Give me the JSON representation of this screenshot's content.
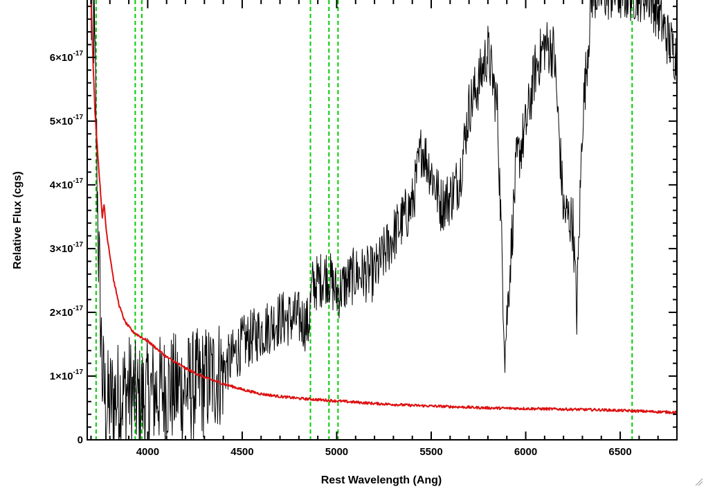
{
  "chart_data": {
    "type": "line",
    "xlabel": "Rest Wavelength (Ang)",
    "ylabel": "Relative Flux (cgs)",
    "xlim": [
      3680,
      6800
    ],
    "ylim": [
      0,
      6.9e-17
    ],
    "x_ticks": [
      4000,
      4500,
      5000,
      5500,
      6000,
      6500
    ],
    "x_tick_labels": [
      "4000",
      "4500",
      "5000",
      "5500",
      "6000",
      "6500"
    ],
    "y_ticks": [
      0,
      1e-17,
      2e-17,
      3e-17,
      4e-17,
      5e-17,
      6e-17
    ],
    "y_tick_labels": [
      {
        "mantissa": "0",
        "exponent": ""
      },
      {
        "mantissa": "1×10",
        "exponent": "-17"
      },
      {
        "mantissa": "2×10",
        "exponent": "-17"
      },
      {
        "mantissa": "3×10",
        "exponent": "-17"
      },
      {
        "mantissa": "4×10",
        "exponent": "-17"
      },
      {
        "mantissa": "5×10",
        "exponent": "-17"
      },
      {
        "mantissa": "6×10",
        "exponent": "-17"
      }
    ],
    "grid": false,
    "reference_lines": [
      3727,
      3934,
      3969,
      4861,
      4959,
      5007,
      6563
    ],
    "series": [
      {
        "role": "spectrum",
        "color": "#000000",
        "x": [
          3700,
          3710,
          3720,
          3740,
          3760,
          3780,
          3800,
          3850,
          3900,
          3950,
          4000,
          4100,
          4200,
          4300,
          4400,
          4500,
          4600,
          4700,
          4800,
          4850,
          4870,
          4950,
          5000,
          5100,
          5200,
          5300,
          5400,
          5450,
          5500,
          5550,
          5600,
          5650,
          5700,
          5750,
          5800,
          5850,
          5890,
          5950,
          6000,
          6050,
          6100,
          6150,
          6200,
          6250,
          6270,
          6300,
          6350,
          6400,
          6500,
          6600,
          6650,
          6700,
          6750,
          6800
        ],
        "y": [
          6.5e-17,
          7e-17,
          6e-17,
          3e-17,
          1e-17,
          5e-18,
          6e-18,
          7e-18,
          8e-18,
          6e-18,
          7e-18,
          8e-18,
          8e-18,
          9e-18,
          1.1e-17,
          1.5e-17,
          1.7e-17,
          1.9e-17,
          1.9e-17,
          1.8e-17,
          2.4e-17,
          2.6e-17,
          2.3e-17,
          2.6e-17,
          2.6e-17,
          3.2e-17,
          3.7e-17,
          4.6e-17,
          4.2e-17,
          3.7e-17,
          3.8e-17,
          4.1e-17,
          5.2e-17,
          5.6e-17,
          6.1e-17,
          5.2e-17,
          1.4e-17,
          4.3e-17,
          4.9e-17,
          5.8e-17,
          6.2e-17,
          6.1e-17,
          3.6e-17,
          3.4e-17,
          2e-17,
          5e-17,
          7e-17,
          7e-17,
          7e-17,
          7e-17,
          7e-17,
          6.7e-17,
          6.3e-17,
          6e-17
        ]
      },
      {
        "role": "error",
        "color": "#dd1111",
        "x": [
          3700,
          3710,
          3720,
          3740,
          3760,
          3770,
          3780,
          3800,
          3820,
          3850,
          3880,
          3920,
          3960,
          4000,
          4100,
          4200,
          4300,
          4400,
          4500,
          4600,
          4700,
          4800,
          4900,
          5000,
          5200,
          5400,
          5600,
          5800,
          6000,
          6200,
          6400,
          6600,
          6800
        ],
        "y": [
          7e-17,
          6e-17,
          5.2e-17,
          4.3e-17,
          3.5e-17,
          3.7e-17,
          3.3e-17,
          2.9e-17,
          2.5e-17,
          2.1e-17,
          1.85e-17,
          1.7e-17,
          1.62e-17,
          1.55e-17,
          1.3e-17,
          1.12e-17,
          9.8e-18,
          8.8e-18,
          7.9e-18,
          7.2e-18,
          6.8e-18,
          6.5e-18,
          6.3e-18,
          6.1e-18,
          5.7e-18,
          5.4e-18,
          5.2e-18,
          5e-18,
          4.9e-18,
          4.8e-18,
          4.7e-18,
          4.5e-18,
          4.3e-18
        ]
      }
    ],
    "line_colors": {
      "reference": "#00cc00",
      "spectrum": "#000000",
      "error": "#dd1111"
    }
  }
}
